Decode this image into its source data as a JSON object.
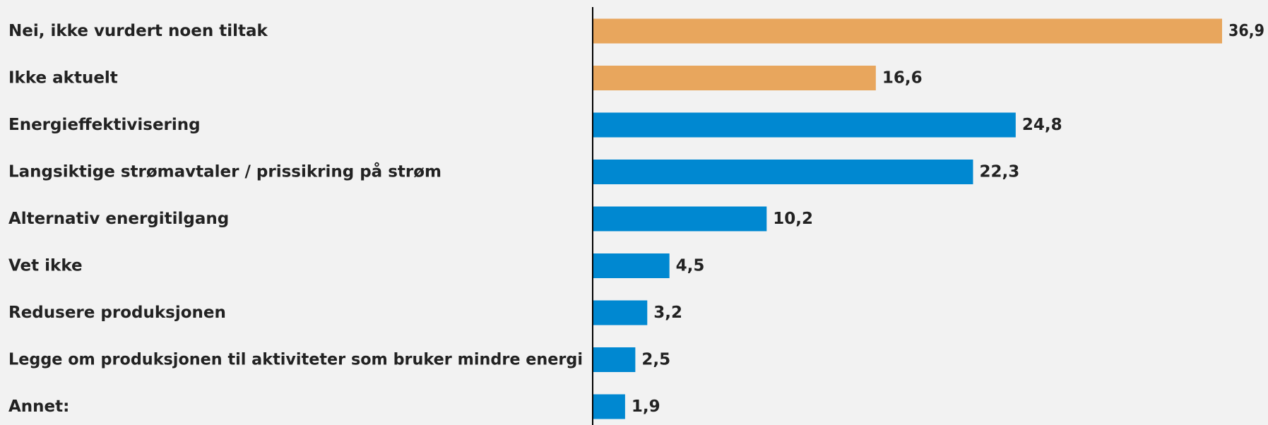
{
  "chart_data": {
    "type": "bar",
    "orientation": "horizontal",
    "title": "",
    "xlabel": "",
    "ylabel": "",
    "grid": false,
    "legend": "none",
    "xlim": [
      0,
      36.9
    ],
    "categories": [
      "Nei, ikke vurdert noen tiltak",
      "Ikke aktuelt",
      "Energieffektivisering",
      "Langsiktige strømavtaler / prissikring på strøm",
      "Alternativ energitilgang",
      "Vet ikke",
      "Redusere produksjonen",
      "Legge om produksjonen til aktiviteter som bruker mindre energi",
      "Annet:"
    ],
    "values": [
      36.9,
      16.6,
      24.8,
      22.3,
      10.2,
      4.5,
      3.2,
      2.5,
      1.9
    ],
    "value_labels": [
      "36,9",
      "16,6",
      "24,8",
      "22,3",
      "10,2",
      "4,5",
      "3,2",
      "2,5",
      "1,9"
    ],
    "bar_colors": [
      "#e8a65d",
      "#e8a65d",
      "#0088d1",
      "#0088d1",
      "#0088d1",
      "#0088d1",
      "#0088d1",
      "#0088d1",
      "#0088d1"
    ],
    "colors": {
      "highlight": "#e8a65d",
      "default": "#0088d1",
      "axis": "#000000",
      "background": "#f2f2f2"
    }
  }
}
